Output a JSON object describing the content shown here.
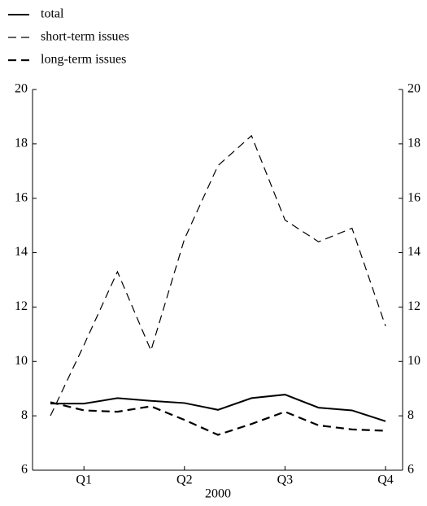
{
  "chart_data": {
    "type": "line",
    "x_label": "2000",
    "categories": [
      null,
      "Q1",
      null,
      null,
      "Q2",
      null,
      null,
      "Q3",
      null,
      null,
      "Q4"
    ],
    "series": [
      {
        "name": "total",
        "color": "#000000",
        "line_style": "solid",
        "line_width": 2,
        "values": [
          8.45,
          8.45,
          8.65,
          8.55,
          8.47,
          8.22,
          8.65,
          8.78,
          8.3,
          8.2,
          7.8
        ]
      },
      {
        "name": "short-term issues",
        "color": "#000000",
        "line_style": "dashed",
        "line_width": 1.2,
        "values": [
          8.0,
          10.6,
          13.3,
          10.4,
          14.5,
          17.2,
          18.3,
          15.2,
          14.4,
          14.9,
          11.3
        ]
      },
      {
        "name": "long-term issues",
        "color": "#000000",
        "line_style": "dashed",
        "line_width": 2.2,
        "values": [
          8.5,
          8.2,
          8.15,
          8.35,
          7.85,
          7.3,
          7.7,
          8.15,
          7.65,
          7.5,
          7.45
        ]
      }
    ],
    "ylim": [
      6,
      20
    ],
    "yticks": [
      6,
      8,
      10,
      12,
      14,
      16,
      18,
      20
    ],
    "y2lim": [
      6,
      20
    ],
    "y2ticks": [
      6,
      8,
      10,
      12,
      14,
      16,
      18,
      20
    ],
    "legend": "top-left",
    "grid": false
  }
}
